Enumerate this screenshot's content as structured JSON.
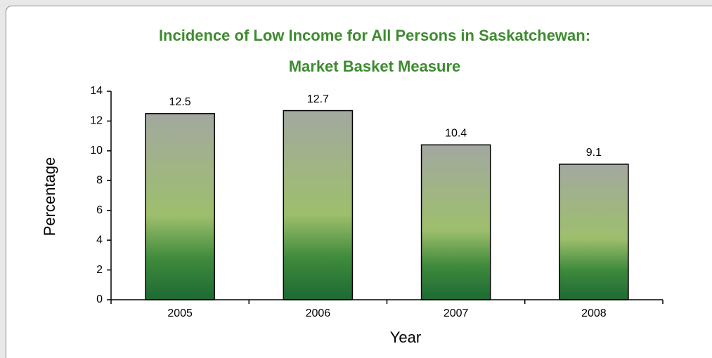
{
  "chart_data": {
    "type": "bar",
    "title": [
      "Incidence of Low Income for All Persons in Saskatchewan:",
      "Market Basket Measure"
    ],
    "x_label": "Year",
    "y_label": "Percentage",
    "categories": [
      "2005",
      "2006",
      "2007",
      "2008"
    ],
    "values": [
      12.5,
      12.7,
      10.4,
      9.1
    ],
    "ylim": [
      0,
      14
    ],
    "yticks": [
      0,
      2,
      4,
      6,
      8,
      10,
      12,
      14
    ]
  }
}
